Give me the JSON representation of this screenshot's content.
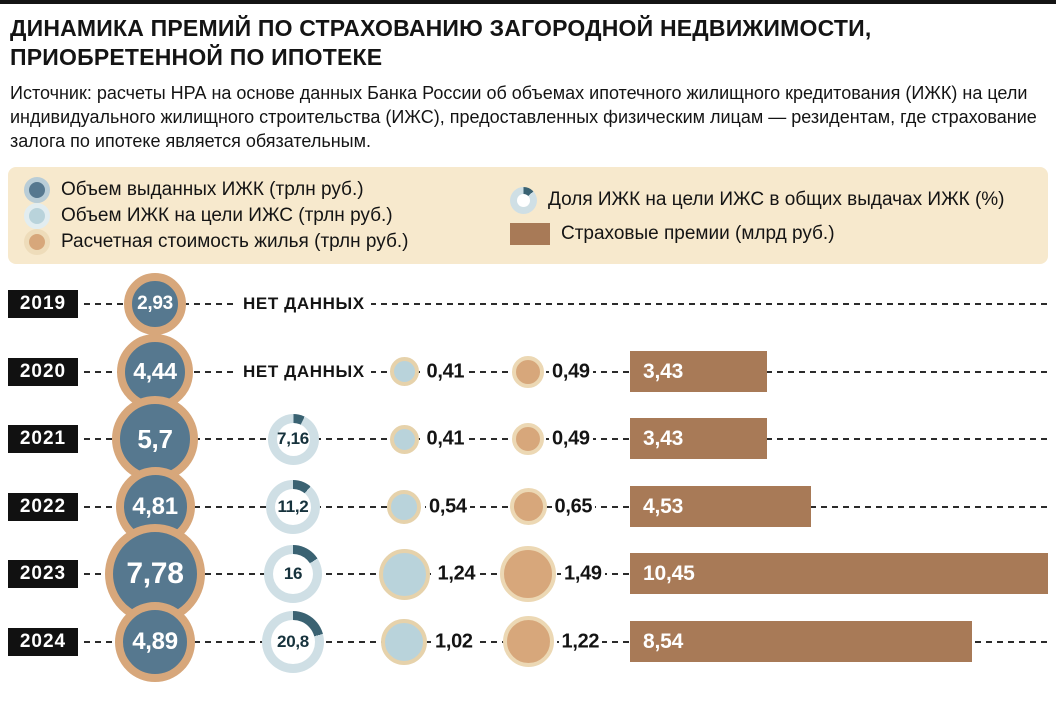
{
  "title": "ДИНАМИКА ПРЕМИЙ ПО СТРАХОВАНИЮ ЗАГОРОДНОЙ НЕДВИЖИМОСТИ, ПРИОБРЕТЕННОЙ ПО ИПОТЕКЕ",
  "source": "Источник: расчеты НРА на основе данных Банка России об объемах ипотечного жилищного кредитования (ИЖК) на цели индивидуального жилищного строительства (ИЖС), предоставленных физическим лицам — резидентам, где страхование залога по ипотеке является обязательным.",
  "no_data_label": "НЕТ ДАННЫХ",
  "legend": {
    "items": [
      {
        "key": "issued",
        "label": "Объем выданных ИЖК (трлн руб.)",
        "type": "circle",
        "color": "#56788f",
        "ring": "#b9cdd7"
      },
      {
        "key": "izhs",
        "label": "Объем ИЖК на цели ИЖС (трлн руб.)",
        "type": "circle",
        "color": "#b9d3db",
        "ring": "#e2edf0"
      },
      {
        "key": "housing",
        "label": "Расчетная стоимость жилья (трлн руб.)",
        "type": "circle",
        "color": "#d7a77b",
        "ring": "#eedcba"
      },
      {
        "key": "share",
        "label": "Доля ИЖК на цели ИЖС в общих выдачах ИЖК (%)",
        "type": "donut"
      },
      {
        "key": "premiums",
        "label": "Страховые премии (млрд руб.)",
        "type": "bar",
        "color": "#a87a57"
      }
    ]
  },
  "colors": {
    "slate": "#56788f",
    "tan": "#d7a77b",
    "light_blue": "#b9d3db",
    "cream_ring": "#ecd8b4",
    "pale_ring": "#e6d2ab",
    "brown": "#a87a57",
    "teal": "#3a6272",
    "donut_base": "#cfdfe5",
    "legend_bg": "#f7e9cd",
    "ink": "#141414"
  },
  "chart_data": {
    "type": "table",
    "years": [
      "2019",
      "2020",
      "2021",
      "2022",
      "2023",
      "2024"
    ],
    "no_data_years": [
      "2019",
      "2020"
    ],
    "series": [
      {
        "key": "issued",
        "name": "Объем выданных ИЖК (трлн руб.)",
        "values": [
          2.93,
          4.44,
          5.7,
          4.81,
          7.78,
          4.89
        ],
        "labels": [
          "2,93",
          "4,44",
          "5,7",
          "4,81",
          "7,78",
          "4,89"
        ]
      },
      {
        "key": "share",
        "name": "Доля ИЖК на цели ИЖС в общих выдачах ИЖК (%)",
        "values": [
          null,
          null,
          7.16,
          11.2,
          16,
          20.8
        ],
        "labels": [
          null,
          null,
          "7,16",
          "11,2",
          "16",
          "20,8"
        ]
      },
      {
        "key": "izhs",
        "name": "Объем ИЖК на цели ИЖС (трлн руб.)",
        "values": [
          null,
          0.41,
          0.41,
          0.54,
          1.24,
          1.02
        ],
        "labels": [
          null,
          "0,41",
          "0,41",
          "0,54",
          "1,24",
          "1,02"
        ]
      },
      {
        "key": "housing",
        "name": "Расчетная стоимость жилья (трлн руб.)",
        "values": [
          null,
          0.49,
          0.49,
          0.65,
          1.49,
          1.22
        ],
        "labels": [
          null,
          "0,49",
          "0,49",
          "0,65",
          "1,49",
          "1,22"
        ]
      },
      {
        "key": "premiums",
        "name": "Страховые премии (млрд руб.)",
        "values": [
          null,
          3.43,
          3.43,
          4.53,
          10.45,
          8.54
        ],
        "labels": [
          null,
          "3,43",
          "3,43",
          "4,53",
          "10,45",
          "8,54"
        ]
      }
    ]
  }
}
